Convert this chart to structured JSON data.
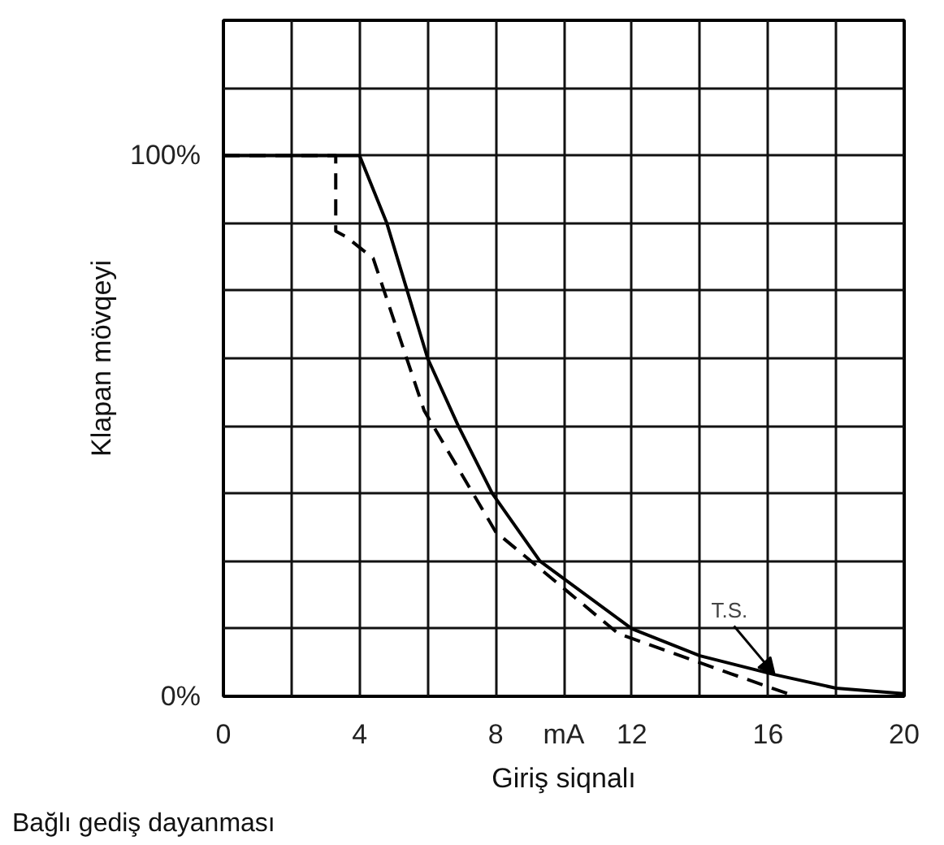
{
  "chart_data": {
    "type": "line",
    "xlabel": "Giriş siqnalı",
    "ylabel": "Klapan mövqeyi",
    "xlim": [
      0,
      20
    ],
    "ylim": [
      0,
      125
    ],
    "xticks": [
      0,
      {
        "value": 2,
        "label": null
      },
      4,
      {
        "value": 6,
        "label": null
      },
      8,
      {
        "value": 10,
        "label": "mA"
      },
      12,
      {
        "value": 14,
        "label": null
      },
      16,
      {
        "value": 18,
        "label": null
      },
      20
    ],
    "yticks": [
      {
        "value": 0,
        "label": "0%"
      },
      {
        "value": 12.5,
        "label": null
      },
      {
        "value": 25,
        "label": null
      },
      {
        "value": 37.5,
        "label": null
      },
      {
        "value": 50,
        "label": null
      },
      {
        "value": 62.5,
        "label": null
      },
      {
        "value": 75,
        "label": null
      },
      {
        "value": 87.5,
        "label": null
      },
      {
        "value": 100,
        "label": "100%"
      },
      {
        "value": 112.5,
        "label": null
      },
      {
        "value": 125,
        "label": null
      }
    ],
    "grid": true,
    "marker": "none",
    "series": [
      {
        "color": "#000000",
        "line_style": "solid",
        "x": [
          0,
          4,
          4.8,
          5.4,
          6,
          6.9,
          7.9,
          9.3,
          12,
          14,
          16.2,
          18,
          20
        ],
        "values": [
          100,
          100,
          87.5,
          75,
          62.5,
          50,
          37.5,
          25,
          12.5,
          7.5,
          4,
          1.5,
          0.5
        ]
      },
      {
        "color": "#000000",
        "line_style": "dashed",
        "x": [
          0,
          3.3,
          3.3,
          3.6,
          4.4,
          5.9,
          8,
          11.6,
          14.9,
          16.8
        ],
        "values": [
          100,
          100,
          86,
          85,
          81,
          52.8,
          30.4,
          11.6,
          4.2,
          0
        ]
      }
    ],
    "annotations": [
      {
        "text": "T.S.",
        "x": 16.2,
        "y": 4
      },
      "Bağlı gediş dayanması"
    ]
  }
}
